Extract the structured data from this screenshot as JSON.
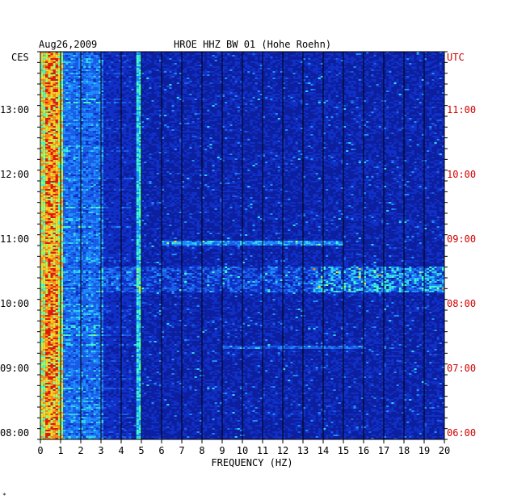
{
  "chart_data": {
    "type": "heatmap",
    "title": "HROE HHZ BW 01 (Hohe Roehn)",
    "date": "Aug26,2009",
    "xlabel": "FREQUENCY (HZ)",
    "left_axis_label": "CES",
    "right_axis_label": "UTC",
    "xlim": [
      0,
      20
    ],
    "x_ticks": [
      "0",
      "1",
      "2",
      "3",
      "4",
      "5",
      "6",
      "7",
      "8",
      "9",
      "10",
      "11",
      "12",
      "13",
      "14",
      "15",
      "16",
      "17",
      "18",
      "19",
      "20"
    ],
    "left_time_ticks": [
      {
        "label": "13:00",
        "hours_before_top": 0.9
      },
      {
        "label": "12:00",
        "hours_before_top": 1.9
      },
      {
        "label": "11:00",
        "hours_before_top": 2.9
      },
      {
        "label": "10:00",
        "hours_before_top": 3.9
      },
      {
        "label": "09:00",
        "hours_before_top": 4.9
      },
      {
        "label": "08:00",
        "hours_before_top": 5.9
      }
    ],
    "right_time_ticks": [
      {
        "label": "11:00",
        "hours_before_top": 0.9
      },
      {
        "label": "10:00",
        "hours_before_top": 1.9
      },
      {
        "label": "09:00",
        "hours_before_top": 2.9
      },
      {
        "label": "08:00",
        "hours_before_top": 3.9
      },
      {
        "label": "07:00",
        "hours_before_top": 4.9
      },
      {
        "label": "06:00",
        "hours_before_top": 5.9
      }
    ],
    "time_span_hours": 6,
    "colors": {
      "background": "#0c1f9e",
      "low": "#0a1e96",
      "mid": "#1f8cff",
      "high": "#3fffc8",
      "peak": "#ffd21e",
      "max": "#e21a0a",
      "grid": "#000000",
      "utc": "#d00000"
    }
  },
  "footer_mark": "*"
}
